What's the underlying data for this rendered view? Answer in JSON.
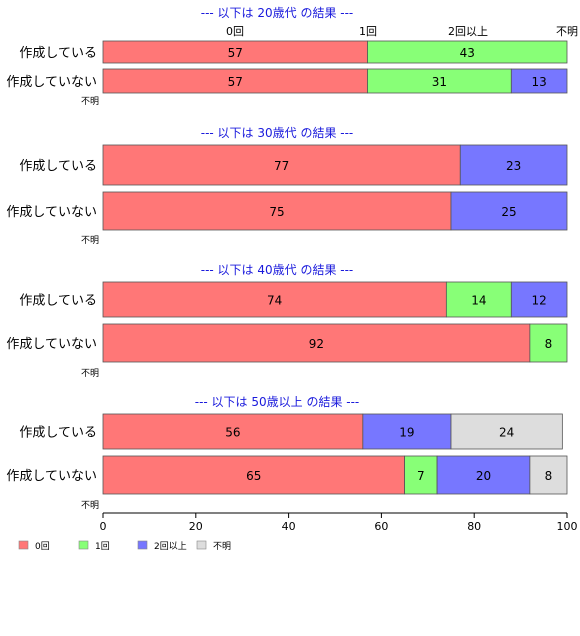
{
  "chart_data": {
    "type": "bar",
    "orientation": "horizontal",
    "stacked": true,
    "categories": [
      "0回",
      "1回",
      "2回以上",
      "不明"
    ],
    "xlim": [
      0,
      100
    ],
    "xticks": [
      0,
      20,
      40,
      60,
      80,
      100
    ],
    "colors": [
      "#ff7777",
      "#88ff77",
      "#7777ff",
      "#dddddd"
    ],
    "header_labels": [
      "0回",
      "1回",
      "2回以上",
      "不明"
    ],
    "grid": false,
    "legend_position": "bottom-left",
    "panels": [
      {
        "title": "--- 以下は 20歳代 の結果 ---",
        "rows": [
          {
            "label": "作成している",
            "values": [
              57,
              43,
              0,
              0
            ]
          },
          {
            "label": "作成していない",
            "values": [
              57,
              31,
              13,
              0
            ]
          }
        ],
        "footnote": "不明"
      },
      {
        "title": "--- 以下は 30歳代 の結果 ---",
        "rows": [
          {
            "label": "作成している",
            "values": [
              77,
              0,
              23,
              0
            ]
          },
          {
            "label": "作成していない",
            "values": [
              75,
              0,
              25,
              0
            ]
          }
        ],
        "footnote": "不明"
      },
      {
        "title": "--- 以下は 40歳代 の結果 ---",
        "rows": [
          {
            "label": "作成している",
            "values": [
              74,
              14,
              12,
              0
            ]
          },
          {
            "label": "作成していない",
            "values": [
              92,
              8,
              0,
              0
            ]
          }
        ],
        "footnote": "不明"
      },
      {
        "title": "--- 以下は 50歳以上 の結果 ---",
        "rows": [
          {
            "label": "作成している",
            "values": [
              56,
              0,
              19,
              24
            ]
          },
          {
            "label": "作成していない",
            "values": [
              65,
              7,
              20,
              8
            ]
          }
        ],
        "footnote": "不明"
      }
    ]
  }
}
